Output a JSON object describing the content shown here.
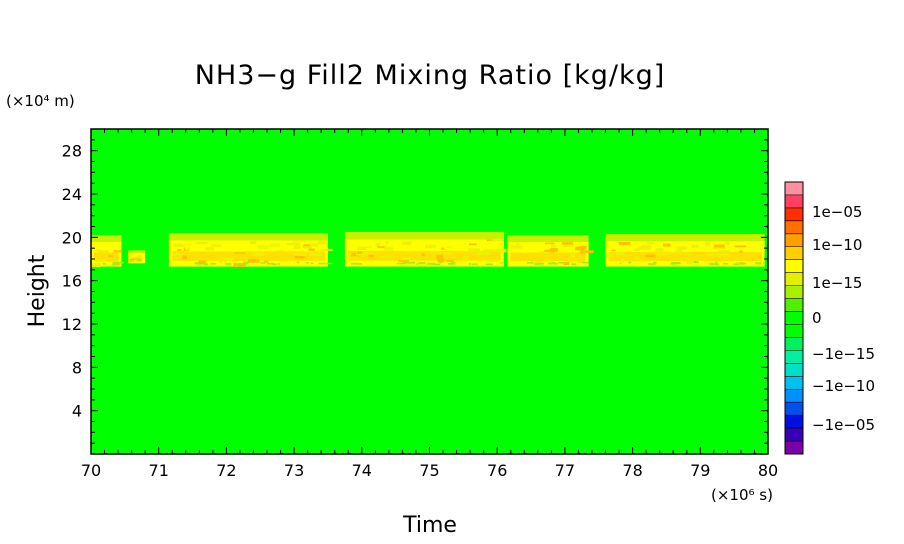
{
  "chart_data": {
    "type": "heatmap",
    "title": "NH3−g Fill2 Mixing Ratio [kg/kg]",
    "xlabel": "Time",
    "ylabel": "Height",
    "x_unit_label": "(×10⁶ s)",
    "y_unit_label": "(×10⁴ m)",
    "xlim": [
      70,
      80
    ],
    "ylim": [
      0,
      30
    ],
    "x_ticks": [
      "70",
      "71",
      "72",
      "73",
      "74",
      "75",
      "76",
      "77",
      "78",
      "79",
      "80"
    ],
    "y_ticks": [
      "4",
      "8",
      "12",
      "16",
      "20",
      "24",
      "28"
    ],
    "background_level": "0",
    "colorbar": {
      "tick_labels": [
        "1e−05",
        "1e−10",
        "1e−15",
        "0",
        "−1e−15",
        "−1e−10",
        "−1e−05"
      ],
      "colors": [
        "#7a00a8",
        "#3a00b8",
        "#0010e0",
        "#0050f0",
        "#0090ff",
        "#00c0f0",
        "#00e0c8",
        "#00f0a0",
        "#00f060",
        "#00ff00",
        "#00ff00",
        "#50f000",
        "#a8f000",
        "#e0f000",
        "#ffff00",
        "#ffd000",
        "#ffa000",
        "#ff7000",
        "#ff3000",
        "#ff4060",
        "#ff90a0"
      ]
    },
    "layers": [
      {
        "x": [
          70.0,
          70.45
        ],
        "y": [
          17.3,
          20.2
        ],
        "level": "1e-15"
      },
      {
        "x": [
          70.55,
          70.8
        ],
        "y": [
          17.6,
          18.8
        ],
        "level": "1e-15"
      },
      {
        "x": [
          71.15,
          73.5
        ],
        "y": [
          17.3,
          20.4
        ],
        "level": "1e-15"
      },
      {
        "x": [
          73.75,
          76.1
        ],
        "y": [
          17.3,
          20.5
        ],
        "level": "1e-15"
      },
      {
        "x": [
          76.15,
          77.35
        ],
        "y": [
          17.3,
          20.2
        ],
        "level": "1e-15"
      },
      {
        "x": [
          77.6,
          79.95
        ],
        "y": [
          17.3,
          20.3
        ],
        "level": "1e-15"
      }
    ]
  }
}
